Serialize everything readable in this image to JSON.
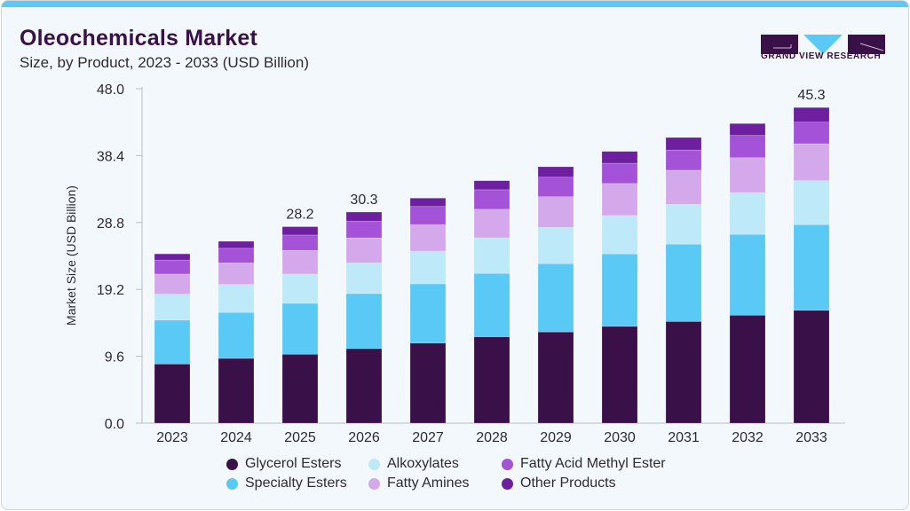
{
  "header": {
    "title": "Oleochemicals Market",
    "subtitle": "Size, by Product, 2023 - 2033 (USD Billion)"
  },
  "logo": {
    "text": "GRAND VIEW RESEARCH",
    "colors": {
      "dark": "#3a1048",
      "accent": "#5bc9f5"
    }
  },
  "chart_data": {
    "type": "bar",
    "stacked": true,
    "title": "Oleochemicals Market",
    "subtitle": "Size, by Product, 2023 - 2033 (USD Billion)",
    "xlabel": "",
    "ylabel": "Market Size (USD Billion)",
    "ylim": [
      0,
      48
    ],
    "yticks": [
      "0.0",
      "9.6",
      "19.2",
      "28.8",
      "38.4",
      "48.0"
    ],
    "grid": false,
    "legend_position": "bottom",
    "categories": [
      "2023",
      "2024",
      "2025",
      "2026",
      "2027",
      "2028",
      "2029",
      "2030",
      "2031",
      "2032",
      "2033"
    ],
    "series": [
      {
        "name": "Glycerol Esters",
        "color": "#3a1048",
        "values": [
          8.5,
          9.3,
          9.9,
          10.7,
          11.5,
          12.4,
          13.1,
          13.9,
          14.6,
          15.5,
          16.2
        ]
      },
      {
        "name": "Specialty Esters",
        "color": "#5bc9f5",
        "values": [
          6.3,
          6.6,
          7.3,
          7.9,
          8.5,
          9.1,
          9.8,
          10.4,
          11.1,
          11.6,
          12.3
        ]
      },
      {
        "name": "Alkoxylates",
        "color": "#bde9f9",
        "values": [
          3.7,
          4.0,
          4.2,
          4.4,
          4.7,
          5.1,
          5.2,
          5.5,
          5.7,
          6.0,
          6.3
        ]
      },
      {
        "name": "Fatty Amines",
        "color": "#d4a9ec",
        "values": [
          2.9,
          3.1,
          3.4,
          3.6,
          3.8,
          4.1,
          4.4,
          4.6,
          4.9,
          5.0,
          5.3
        ]
      },
      {
        "name": "Fatty Acid Methyl Ester",
        "color": "#a452d8",
        "values": [
          2.0,
          2.1,
          2.2,
          2.4,
          2.6,
          2.8,
          2.8,
          2.9,
          2.9,
          3.2,
          3.1
        ]
      },
      {
        "name": "Other Products",
        "color": "#6e1f9f",
        "values": [
          0.9,
          1.0,
          1.2,
          1.3,
          1.2,
          1.3,
          1.5,
          1.7,
          1.8,
          1.7,
          2.1
        ]
      }
    ],
    "annotations": [
      {
        "category": "2025",
        "label": "28.2"
      },
      {
        "category": "2026",
        "label": "30.3"
      },
      {
        "category": "2033",
        "label": "45.3"
      }
    ]
  },
  "legend": {
    "items": [
      {
        "label": "Glycerol Esters",
        "color": "#3a1048"
      },
      {
        "label": "Alkoxylates",
        "color": "#bde9f9"
      },
      {
        "label": "Fatty Acid Methyl Ester",
        "color": "#a452d8"
      },
      {
        "label": "Specialty Esters",
        "color": "#5bc9f5"
      },
      {
        "label": "Fatty Amines",
        "color": "#d4a9ec"
      },
      {
        "label": "Other Products",
        "color": "#6e1f9f"
      }
    ]
  }
}
